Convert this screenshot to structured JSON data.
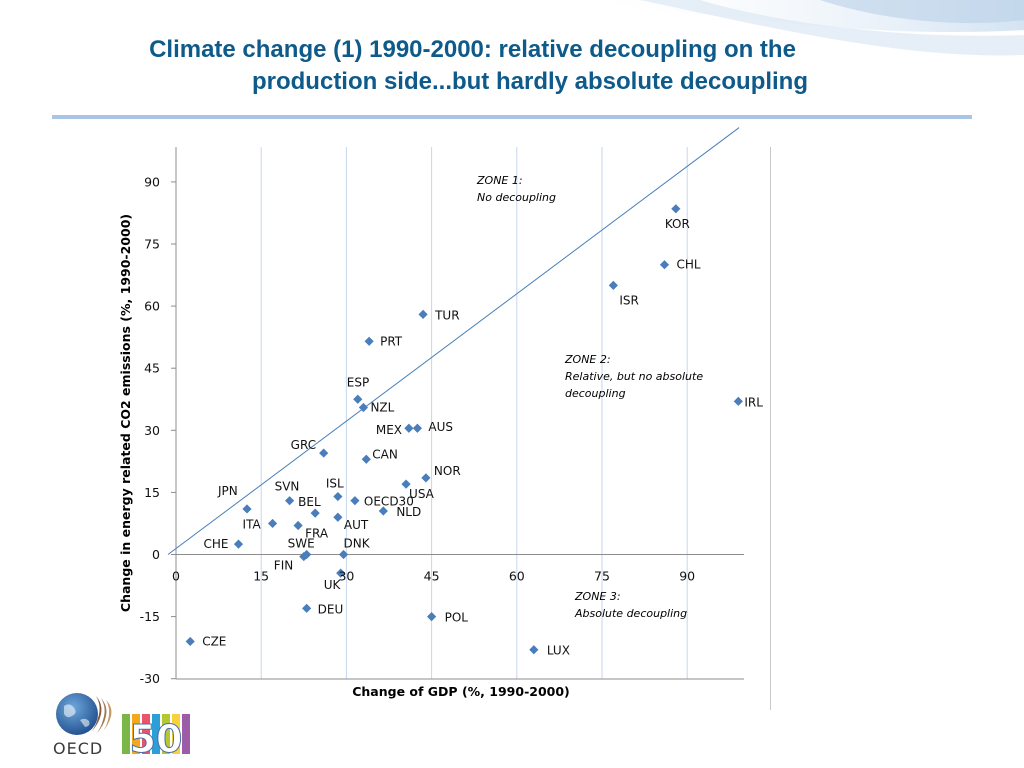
{
  "title": {
    "line1": "Climate change (1) 1990-2000: relative decoupling on the",
    "line2": "production side...but hardly absolute decoupling"
  },
  "colors": {
    "title": "#0e5a8a",
    "marker": "#4a7ebb",
    "line": "#4a7ebb",
    "grid": "#c7d6ee",
    "rule": "#a9c4e4"
  },
  "chart_data": {
    "type": "scatter",
    "xlabel": "Change of GDP (%, 1990-2000)",
    "ylabel": "Change in energy related CO2 emissions (%, 1990-2000)",
    "xlim": [
      0,
      100
    ],
    "ylim": [
      -30,
      100
    ],
    "xticks": [
      0,
      15,
      30,
      45,
      60,
      75,
      90
    ],
    "yticks": [
      90,
      75,
      60,
      45,
      30,
      15,
      0,
      -15,
      -30
    ],
    "grid": "vertical",
    "reference_line": {
      "x": [
        0,
        99.5
      ],
      "y": [
        0,
        99.5
      ]
    },
    "points": [
      {
        "label": "KOR",
        "x": 88,
        "y": 83.5
      },
      {
        "label": "CHL",
        "x": 86,
        "y": 70
      },
      {
        "label": "ISR",
        "x": 77,
        "y": 65
      },
      {
        "label": "TUR",
        "x": 43.5,
        "y": 58
      },
      {
        "label": "PRT",
        "x": 34,
        "y": 51.5
      },
      {
        "label": "IRL",
        "x": 99,
        "y": 37
      },
      {
        "label": "ESP",
        "x": 32,
        "y": 37.5
      },
      {
        "label": "NZL",
        "x": 33,
        "y": 35.5
      },
      {
        "label": "MEX",
        "x": 41,
        "y": 30.5
      },
      {
        "label": "AUS",
        "x": 42.5,
        "y": 30.5
      },
      {
        "label": "GRC",
        "x": 26,
        "y": 24.5
      },
      {
        "label": "CAN",
        "x": 33.5,
        "y": 23
      },
      {
        "label": "NOR",
        "x": 44,
        "y": 18.5
      },
      {
        "label": "USA",
        "x": 40.5,
        "y": 17
      },
      {
        "label": "JPN",
        "x": 12.5,
        "y": 11
      },
      {
        "label": "SVN",
        "x": 20,
        "y": 13
      },
      {
        "label": "ISL",
        "x": 28.5,
        "y": 14
      },
      {
        "label": "BEL",
        "x": 24.5,
        "y": 10
      },
      {
        "label": "OECD30",
        "x": 31.5,
        "y": 13
      },
      {
        "label": "NLD",
        "x": 36.5,
        "y": 10.5
      },
      {
        "label": "AUT",
        "x": 28.5,
        "y": 9
      },
      {
        "label": "ITA",
        "x": 17,
        "y": 7.5
      },
      {
        "label": "FRA",
        "x": 21.5,
        "y": 7
      },
      {
        "label": "CHE",
        "x": 11,
        "y": 2.5
      },
      {
        "label": "SWE",
        "x": 23,
        "y": 0
      },
      {
        "label": "DNK",
        "x": 29.5,
        "y": 0
      },
      {
        "label": "FIN",
        "x": 22.5,
        "y": -0.5
      },
      {
        "label": "UK",
        "x": 29,
        "y": -4.5
      },
      {
        "label": "DEU",
        "x": 23,
        "y": -13
      },
      {
        "label": "POL",
        "x": 45,
        "y": -15
      },
      {
        "label": "CZE",
        "x": 2.5,
        "y": -21
      },
      {
        "label": "LUX",
        "x": 63,
        "y": -23
      }
    ],
    "annotations": [
      {
        "lines": [
          "ZONE 1:",
          "No decoupling"
        ]
      },
      {
        "lines": [
          "ZONE 2:",
          "Relative, but no absolute",
          "decoupling"
        ]
      },
      {
        "lines": [
          "ZONE 3:",
          "Absolute decoupling"
        ]
      }
    ]
  },
  "logo": {
    "text": "OECD",
    "badge": "50"
  }
}
